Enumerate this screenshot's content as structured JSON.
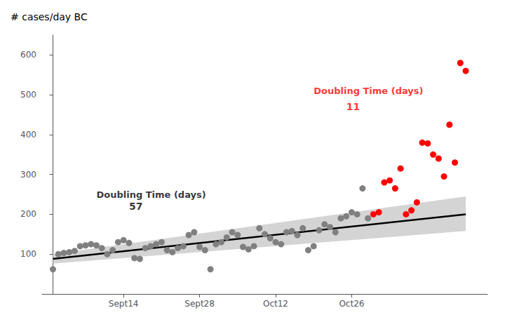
{
  "chart_data": {
    "type": "scatter",
    "title": "# cases/day BC",
    "xlim": [
      -2,
      80
    ],
    "xticks": [
      {
        "value": 13,
        "label": "Sept14"
      },
      {
        "value": 27,
        "label": "Sept28"
      },
      {
        "value": 41,
        "label": "Oct12"
      },
      {
        "value": 55,
        "label": "Oct26"
      }
    ],
    "ylim": [
      0,
      650
    ],
    "yticks": [
      100,
      200,
      300,
      400,
      500,
      600
    ],
    "grid": false,
    "series": [
      {
        "type": "band",
        "color": "#cccccc",
        "x": [
          0,
          76
        ],
        "lower": [
          76,
          158
        ],
        "upper": [
          100,
          245
        ]
      },
      {
        "type": "line",
        "color": "#000000",
        "x": [
          0,
          76
        ],
        "values": [
          88,
          200
        ]
      },
      {
        "type": "scatter",
        "color": "#808080",
        "x": [
          0,
          1,
          2,
          3,
          4,
          5,
          6,
          7,
          8,
          9,
          10,
          11,
          12,
          13,
          14,
          15,
          16,
          17,
          18,
          19,
          20,
          21,
          22,
          23,
          24,
          25,
          26,
          27,
          28,
          29,
          30,
          31,
          32,
          33,
          34,
          35,
          36,
          37,
          38,
          39,
          40,
          41,
          42,
          43,
          44,
          45,
          46,
          47,
          48,
          49,
          50,
          51,
          52,
          53,
          54,
          55,
          56,
          57,
          58
        ],
        "values": [
          62,
          100,
          103,
          105,
          108,
          120,
          122,
          125,
          122,
          115,
          100,
          110,
          130,
          135,
          128,
          90,
          88,
          115,
          120,
          125,
          130,
          110,
          105,
          115,
          120,
          148,
          155,
          118,
          110,
          62,
          125,
          130,
          142,
          155,
          148,
          118,
          112,
          120,
          165,
          150,
          140,
          130,
          125,
          155,
          158,
          148,
          165,
          110,
          120,
          160,
          175,
          168,
          155,
          190,
          195,
          205,
          200,
          265,
          190
        ]
      },
      {
        "type": "scatter",
        "color": "#ff0000",
        "x": [
          59,
          60,
          61,
          62,
          63,
          64,
          65,
          66,
          67,
          68,
          69,
          70,
          71,
          72,
          73,
          74,
          75,
          76
        ],
        "values": [
          200,
          205,
          280,
          285,
          265,
          315,
          200,
          210,
          230,
          380,
          378,
          350,
          340,
          295,
          425,
          330,
          580,
          560
        ]
      }
    ],
    "annotations": [
      {
        "text": "Doubling Time (days)",
        "x": 8,
        "y": 250,
        "color": "#000000"
      },
      {
        "text": "57",
        "x": 14,
        "y": 220,
        "color": "#000000"
      },
      {
        "text": "Doubling Time (days)",
        "x": 48,
        "y": 510,
        "color": "#ff0000"
      },
      {
        "text": "11",
        "x": 54,
        "y": 470,
        "color": "#ff0000"
      }
    ]
  }
}
